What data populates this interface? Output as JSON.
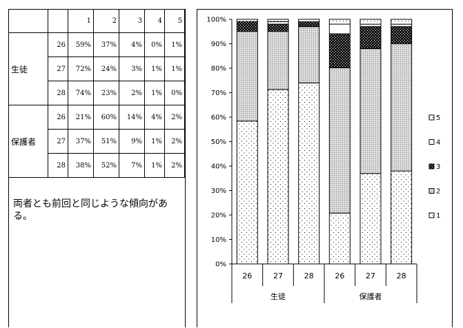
{
  "table": {
    "header": [
      "",
      "",
      "1",
      "2",
      "3",
      "4",
      "5"
    ],
    "groups": [
      {
        "label": "生徒",
        "rows": [
          {
            "year": "26",
            "values": [
              "59%",
              "37%",
              "4%",
              "0%",
              "1%"
            ]
          },
          {
            "year": "27",
            "values": [
              "72%",
              "24%",
              "3%",
              "1%",
              "1%"
            ]
          },
          {
            "year": "28",
            "values": [
              "74%",
              "23%",
              "2%",
              "1%",
              "0%"
            ]
          }
        ]
      },
      {
        "label": "保護者",
        "rows": [
          {
            "year": "26",
            "values": [
              "21%",
              "60%",
              "14%",
              "4%",
              "2%"
            ]
          },
          {
            "year": "27",
            "values": [
              "37%",
              "51%",
              "9%",
              "1%",
              "2%"
            ]
          },
          {
            "year": "28",
            "values": [
              "38%",
              "52%",
              "7%",
              "1%",
              "2%"
            ]
          }
        ]
      }
    ]
  },
  "comment": "両者とも前回と同じような傾向がある。",
  "chart_data": {
    "type": "bar",
    "stacked": true,
    "percent": true,
    "categories": [
      "26",
      "27",
      "28",
      "26",
      "27",
      "28"
    ],
    "groups": [
      {
        "label": "生徒",
        "categories": [
          "26",
          "27",
          "28"
        ]
      },
      {
        "label": "保護者",
        "categories": [
          "26",
          "27",
          "28"
        ]
      }
    ],
    "series": [
      {
        "name": "1",
        "values": [
          59,
          72,
          74,
          21,
          37,
          38
        ]
      },
      {
        "name": "2",
        "values": [
          37,
          24,
          23,
          60,
          51,
          52
        ]
      },
      {
        "name": "3",
        "values": [
          4,
          3,
          2,
          14,
          9,
          7
        ]
      },
      {
        "name": "4",
        "values": [
          0,
          1,
          1,
          4,
          1,
          1
        ]
      },
      {
        "name": "5",
        "values": [
          1,
          1,
          0,
          2,
          2,
          2
        ]
      }
    ],
    "ylim": [
      0,
      100
    ],
    "yticks": [
      "0%",
      "10%",
      "20%",
      "30%",
      "40%",
      "50%",
      "60%",
      "70%",
      "80%",
      "90%",
      "100%"
    ],
    "legend_order": [
      "5",
      "4",
      "3",
      "2",
      "1"
    ],
    "legend_position": "right",
    "grid": false
  }
}
